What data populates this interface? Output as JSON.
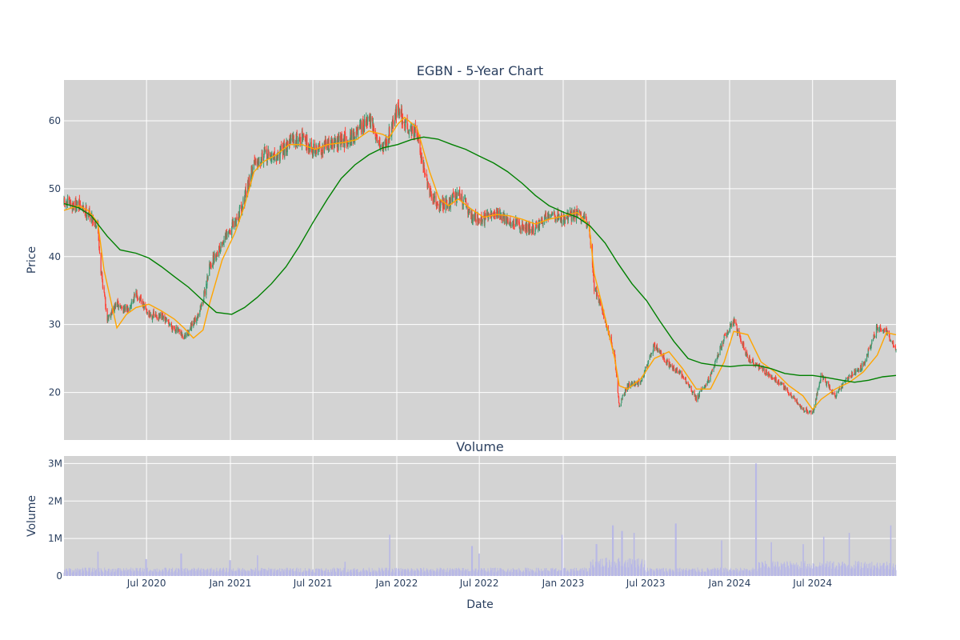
{
  "chart_data": [
    {
      "type": "candlestick",
      "title": "EGBN - 5-Year Chart",
      "ylabel": "Price",
      "ylim": [
        13,
        66
      ],
      "yticks": [
        20,
        30,
        40,
        50,
        60
      ],
      "grid": true,
      "plot_bg": "#d3d3d3",
      "colors": {
        "up": "#3d9970",
        "down": "#ff4136",
        "ma_short": "#ffa500",
        "ma_long": "#008000"
      },
      "series": [
        {
          "kind": "close_trend",
          "x": [
            "2020-01-02",
            "2020-02-03",
            "2020-02-24",
            "2020-03-16",
            "2020-03-23",
            "2020-04-06",
            "2020-04-27",
            "2020-05-18",
            "2020-06-08",
            "2020-07-06",
            "2020-08-03",
            "2020-08-31",
            "2020-09-21",
            "2020-10-12",
            "2020-11-02",
            "2020-11-16",
            "2020-12-14",
            "2021-01-11",
            "2021-02-01",
            "2021-02-22",
            "2021-03-15",
            "2021-04-12",
            "2021-05-10",
            "2021-06-07",
            "2021-07-06",
            "2021-08-02",
            "2021-09-07",
            "2021-10-04",
            "2021-11-01",
            "2021-12-01",
            "2021-12-15",
            "2022-01-03",
            "2022-01-18",
            "2022-02-14",
            "2022-03-14",
            "2022-04-04",
            "2022-04-25",
            "2022-05-16",
            "2022-06-13",
            "2022-07-11",
            "2022-08-08",
            "2022-09-06",
            "2022-10-03",
            "2022-11-01",
            "2022-12-01",
            "2023-01-03",
            "2023-02-01",
            "2023-02-27",
            "2023-03-10",
            "2023-03-27",
            "2023-04-24",
            "2023-05-04",
            "2023-05-22",
            "2023-06-20",
            "2023-07-20",
            "2023-08-21",
            "2023-09-20",
            "2023-10-20",
            "2023-11-20",
            "2023-12-20",
            "2024-01-10",
            "2024-02-10",
            "2024-03-10",
            "2024-04-10",
            "2024-05-10",
            "2024-06-10",
            "2024-07-01",
            "2024-07-20",
            "2024-08-20",
            "2024-09-20",
            "2024-10-20",
            "2024-11-20",
            "2024-12-10",
            "2024-12-31"
          ],
          "values": [
            47.8,
            47.5,
            46.5,
            44.5,
            38.0,
            31.0,
            33.0,
            32.0,
            34.5,
            31.5,
            31.0,
            29.5,
            28.0,
            30.0,
            33.5,
            38.5,
            42.0,
            45.0,
            48.5,
            54.0,
            55.0,
            54.5,
            57.0,
            57.5,
            55.5,
            56.5,
            57.0,
            58.0,
            60.0,
            56.0,
            58.0,
            62.0,
            59.5,
            58.0,
            49.0,
            47.5,
            48.0,
            49.5,
            46.0,
            45.5,
            46.5,
            45.0,
            44.5,
            44.0,
            46.5,
            45.5,
            46.5,
            44.5,
            35.5,
            32.5,
            25.0,
            18.0,
            21.0,
            21.5,
            27.0,
            24.0,
            22.5,
            19.0,
            22.5,
            28.0,
            30.5,
            25.0,
            23.5,
            22.0,
            20.0,
            17.5,
            17.0,
            22.5,
            19.5,
            22.5,
            24.0,
            29.5,
            29.0,
            26.0
          ]
        },
        {
          "kind": "moving_average_short",
          "x": [
            "2020-01-02",
            "2020-02-03",
            "2020-02-24",
            "2020-03-16",
            "2020-03-30",
            "2020-04-27",
            "2020-05-18",
            "2020-06-08",
            "2020-07-06",
            "2020-08-03",
            "2020-08-31",
            "2020-09-21",
            "2020-10-12",
            "2020-11-02",
            "2020-11-16",
            "2020-12-14",
            "2021-01-11",
            "2021-02-01",
            "2021-02-22",
            "2021-03-15",
            "2021-04-12",
            "2021-05-10",
            "2021-06-07",
            "2021-07-06",
            "2021-08-02",
            "2021-09-07",
            "2021-10-04",
            "2021-11-01",
            "2021-12-01",
            "2021-12-15",
            "2022-01-03",
            "2022-01-18",
            "2022-02-14",
            "2022-03-14",
            "2022-04-04",
            "2022-04-25",
            "2022-05-16",
            "2022-06-13",
            "2022-07-11",
            "2022-08-08",
            "2022-09-06",
            "2022-10-03",
            "2022-11-01",
            "2022-12-01",
            "2023-01-03",
            "2023-02-01",
            "2023-02-27",
            "2023-03-10",
            "2023-03-27",
            "2023-04-24",
            "2023-05-04",
            "2023-05-22",
            "2023-06-20",
            "2023-07-20",
            "2023-08-21",
            "2023-09-20",
            "2023-10-20",
            "2023-11-20",
            "2023-12-20",
            "2024-01-10",
            "2024-02-10",
            "2024-03-10",
            "2024-04-10",
            "2024-05-10",
            "2024-06-10",
            "2024-07-01",
            "2024-07-20",
            "2024-08-20",
            "2024-09-20",
            "2024-10-20",
            "2024-11-20",
            "2024-12-10",
            "2024-12-31"
          ],
          "values": [
            46.8,
            47.5,
            46.8,
            45.0,
            38.0,
            29.5,
            31.5,
            32.5,
            33.0,
            32.0,
            30.8,
            29.5,
            28.0,
            29.2,
            33.0,
            39.5,
            43.5,
            47.5,
            52.5,
            54.0,
            55.0,
            56.5,
            56.5,
            55.8,
            56.5,
            56.8,
            57.2,
            58.5,
            58.0,
            57.5,
            59.5,
            60.5,
            59.0,
            52.5,
            48.5,
            47.5,
            48.5,
            47.0,
            45.8,
            46.2,
            46.0,
            45.5,
            44.8,
            45.5,
            46.0,
            46.5,
            44.5,
            37.5,
            33.0,
            25.0,
            21.0,
            20.5,
            22.0,
            25.0,
            26.0,
            23.5,
            20.5,
            20.5,
            24.5,
            29.0,
            28.5,
            24.5,
            23.0,
            21.0,
            19.5,
            17.5,
            19.0,
            20.5,
            21.5,
            23.0,
            25.5,
            28.8,
            28.5
          ]
        },
        {
          "kind": "moving_average_long",
          "x": [
            "2020-01-02",
            "2020-02-03",
            "2020-03-02",
            "2020-04-06",
            "2020-05-04",
            "2020-06-08",
            "2020-07-06",
            "2020-08-03",
            "2020-09-01",
            "2020-10-01",
            "2020-11-02",
            "2020-12-01",
            "2021-01-04",
            "2021-02-01",
            "2021-03-01",
            "2021-04-01",
            "2021-05-03",
            "2021-06-01",
            "2021-07-01",
            "2021-08-02",
            "2021-09-01",
            "2021-10-01",
            "2021-11-01",
            "2021-12-01",
            "2022-01-03",
            "2022-02-01",
            "2022-03-01",
            "2022-04-01",
            "2022-05-02",
            "2022-06-01",
            "2022-07-01",
            "2022-08-01",
            "2022-09-01",
            "2022-10-03",
            "2022-11-01",
            "2022-12-01",
            "2023-01-03",
            "2023-02-01",
            "2023-03-01",
            "2023-04-03",
            "2023-05-01",
            "2023-06-01",
            "2023-07-03",
            "2023-08-01",
            "2023-09-01",
            "2023-10-02",
            "2023-11-01",
            "2023-12-01",
            "2024-01-02",
            "2024-02-01",
            "2024-03-01",
            "2024-04-01",
            "2024-05-01",
            "2024-06-03",
            "2024-07-01",
            "2024-08-01",
            "2024-09-03",
            "2024-10-01",
            "2024-11-01",
            "2024-12-02",
            "2024-12-31"
          ],
          "values": [
            47.8,
            47.2,
            46.0,
            43.0,
            41.0,
            40.5,
            39.8,
            38.5,
            37.0,
            35.5,
            33.5,
            31.8,
            31.5,
            32.5,
            34.0,
            36.0,
            38.5,
            41.5,
            45.0,
            48.5,
            51.5,
            53.5,
            55.0,
            56.0,
            56.5,
            57.2,
            57.6,
            57.3,
            56.5,
            55.8,
            54.8,
            53.8,
            52.5,
            50.8,
            49.0,
            47.5,
            46.5,
            45.8,
            44.5,
            42.0,
            39.0,
            36.0,
            33.5,
            30.5,
            27.5,
            25.0,
            24.3,
            24.0,
            23.8,
            24.0,
            24.0,
            23.5,
            22.8,
            22.5,
            22.5,
            22.2,
            21.8,
            21.5,
            21.8,
            22.3,
            22.5
          ]
        }
      ]
    },
    {
      "type": "bar",
      "title": "Volume",
      "ylabel": "Volume",
      "xlabel": "Date",
      "ylim": [
        0,
        3200000
      ],
      "yticks": [
        0,
        1000000,
        2000000,
        3000000
      ],
      "ytick_labels": [
        "0",
        "1M",
        "2M",
        "3M"
      ],
      "grid": true,
      "bar_color": "#b8b8e6",
      "baseline": 150000,
      "spikes": [
        {
          "x": "2020-03-16",
          "value": 650000
        },
        {
          "x": "2020-06-30",
          "value": 450000
        },
        {
          "x": "2020-09-15",
          "value": 600000
        },
        {
          "x": "2020-12-31",
          "value": 420000
        },
        {
          "x": "2021-03-01",
          "value": 550000
        },
        {
          "x": "2021-09-10",
          "value": 380000
        },
        {
          "x": "2021-12-17",
          "value": 1100000
        },
        {
          "x": "2022-06-15",
          "value": 800000
        },
        {
          "x": "2022-07-01",
          "value": 600000
        },
        {
          "x": "2022-12-30",
          "value": 1100000
        },
        {
          "x": "2023-03-15",
          "value": 850000
        },
        {
          "x": "2023-04-20",
          "value": 1350000
        },
        {
          "x": "2023-05-10",
          "value": 1200000
        },
        {
          "x": "2023-06-05",
          "value": 1150000
        },
        {
          "x": "2023-09-05",
          "value": 1400000
        },
        {
          "x": "2023-12-15",
          "value": 950000
        },
        {
          "x": "2024-02-28",
          "value": 3000000
        },
        {
          "x": "2024-04-01",
          "value": 900000
        },
        {
          "x": "2024-06-10",
          "value": 850000
        },
        {
          "x": "2024-07-26",
          "value": 1050000
        },
        {
          "x": "2024-09-20",
          "value": 1150000
        },
        {
          "x": "2024-12-20",
          "value": 1350000
        }
      ]
    }
  ],
  "shared_x": {
    "xlim": [
      "2020-01-02",
      "2024-12-31"
    ],
    "ticks": [
      "2020-07-01",
      "2021-01-01",
      "2021-07-01",
      "2022-01-01",
      "2022-07-01",
      "2023-01-01",
      "2023-07-01",
      "2024-01-01",
      "2024-07-01"
    ],
    "tick_labels": [
      "Jul 2020",
      "Jan 2021",
      "Jul 2021",
      "Jan 2022",
      "Jul 2022",
      "Jan 2023",
      "Jul 2023",
      "Jan 2024",
      "Jul 2024"
    ]
  }
}
